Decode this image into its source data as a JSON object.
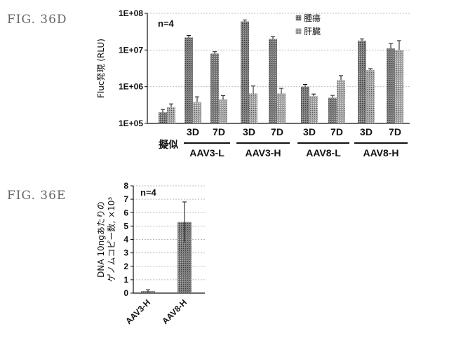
{
  "figure_labels": {
    "top": "FIG. 36D",
    "bottom": "FIG. 36E"
  },
  "colors": {
    "tumor": "#777777",
    "liver": "#a9a9a9",
    "bar_b": "#8c8c8c",
    "axis": "#111111",
    "grid": "#bdbdbd"
  },
  "chart_data": [
    {
      "type": "bar",
      "title": "",
      "annotation": "n=4",
      "ylabel": "Fluc発現 (RLU)",
      "yscale": "log",
      "ylim": [
        100000,
        100000000
      ],
      "yticks": [
        "1E+05",
        "1E+06",
        "1E+07",
        "1E+08"
      ],
      "legend": [
        "腫瘍",
        "肝臓"
      ],
      "legend_position": "top-right",
      "categories": [
        "擬似",
        "AAV3-L 3D",
        "AAV3-L 7D",
        "AAV3-H 3D",
        "AAV3-H 7D",
        "AAV8-L 3D",
        "AAV8-L 7D",
        "AAV8-H 3D",
        "AAV8-H 7D"
      ],
      "category_labels": [
        "擬似",
        "3D",
        "7D",
        "3D",
        "7D",
        "3D",
        "7D",
        "3D",
        "7D"
      ],
      "groups": [
        "AAV3-L",
        "AAV3-H",
        "AAV8-L",
        "AAV8-H"
      ],
      "series": [
        {
          "name": "腫瘍",
          "values": [
            200000,
            22000000,
            8000000,
            60000000,
            20000000,
            1000000,
            500000,
            18000000,
            11000000
          ],
          "errors": [
            40000,
            3000000,
            1000000,
            6000000,
            3000000,
            150000,
            80000,
            2000000,
            4000000
          ]
        },
        {
          "name": "肝臓",
          "values": [
            280000,
            380000,
            450000,
            650000,
            650000,
            550000,
            1500000,
            2800000,
            10000000
          ],
          "errors": [
            60000,
            150000,
            120000,
            400000,
            250000,
            80000,
            500000,
            300000,
            8000000
          ]
        }
      ]
    },
    {
      "type": "bar",
      "title": "",
      "annotation": "n=4",
      "ylabel": "DNA 10ngあたりの ゲノムコピー数, ×10³",
      "ylabel_lines": [
        "DNA 10ngあたりの",
        "ゲノムコピー数, ×10³"
      ],
      "ylim": [
        0,
        8
      ],
      "yticks": [
        "0",
        "1",
        "2",
        "3",
        "4",
        "5",
        "6",
        "7",
        "8"
      ],
      "categories": [
        "AAV3-H",
        "AAV8-H"
      ],
      "values": [
        0.15,
        5.3
      ],
      "errors": [
        0.1,
        1.5
      ]
    }
  ]
}
